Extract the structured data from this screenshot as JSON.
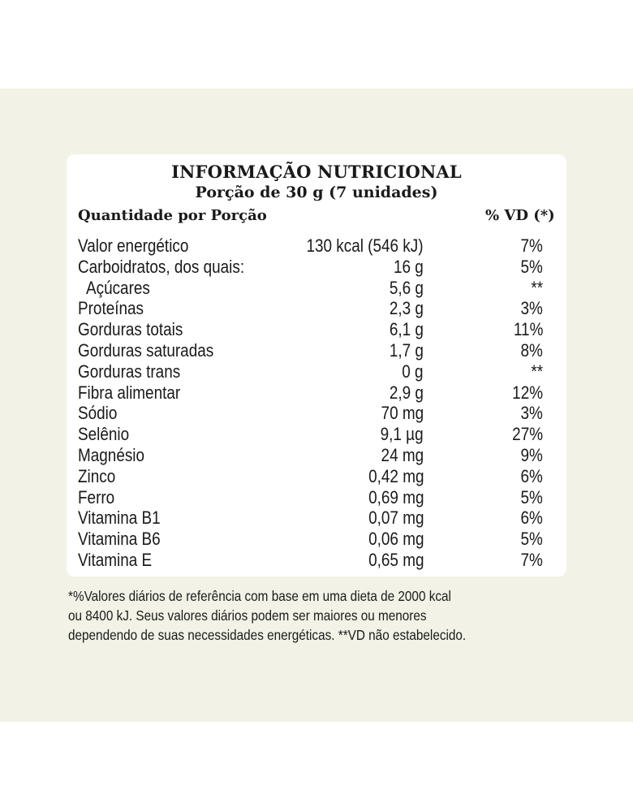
{
  "label": {
    "title": "INFORMAÇÃO NUTRICIONAL",
    "portion": "Porção de 30 g (7 unidades)",
    "header_left": "Quantidade por Porção",
    "header_right": "% VD (*)",
    "rows": [
      {
        "name": "Valor energético",
        "qty": "130 kcal (546 kJ)",
        "vd": "7%"
      },
      {
        "name": "Carboidratos, dos quais:",
        "qty": "16 g",
        "vd": "5%"
      },
      {
        "name": "Açúcares",
        "qty": "5,6 g",
        "vd": "**"
      },
      {
        "name": "Proteínas",
        "qty": "2,3 g",
        "vd": "3%"
      },
      {
        "name": "Gorduras totais",
        "qty": "6,1 g",
        "vd": "11%"
      },
      {
        "name": "Gorduras saturadas",
        "qty": "1,7 g",
        "vd": "8%"
      },
      {
        "name": "Gorduras trans",
        "qty": "0 g",
        "vd": "**"
      },
      {
        "name": "Fibra alimentar",
        "qty": "2,9 g",
        "vd": "12%"
      },
      {
        "name": "Sódio",
        "qty": "70 mg",
        "vd": "3%"
      },
      {
        "name": "Selênio",
        "qty": "9,1 µg",
        "vd": "27%"
      },
      {
        "name": "Magnésio",
        "qty": "24 mg",
        "vd": "9%"
      },
      {
        "name": "Zinco",
        "qty": "0,42 mg",
        "vd": "6%"
      },
      {
        "name": "Ferro",
        "qty": "0,69 mg",
        "vd": "5%"
      },
      {
        "name": "Vitamina B1",
        "qty": "0,07 mg",
        "vd": "6%"
      },
      {
        "name": "Vitamina B6",
        "qty": "0,06 mg",
        "vd": "5%"
      },
      {
        "name": "Vitamina E",
        "qty": "0,65 mg",
        "vd": "7%"
      }
    ],
    "footnote": [
      "*%Valores diários de referência com base em uma dieta de 2000 kcal",
      "ou 8400 kJ. Seus valores diários podem ser maiores ou menores",
      "dependendo de suas necessidades energéticas. **VD não estabelecido."
    ]
  },
  "colors": {
    "background_band": "#f2f3e6",
    "card": "#ffffff",
    "text": "#1a1a1a"
  }
}
